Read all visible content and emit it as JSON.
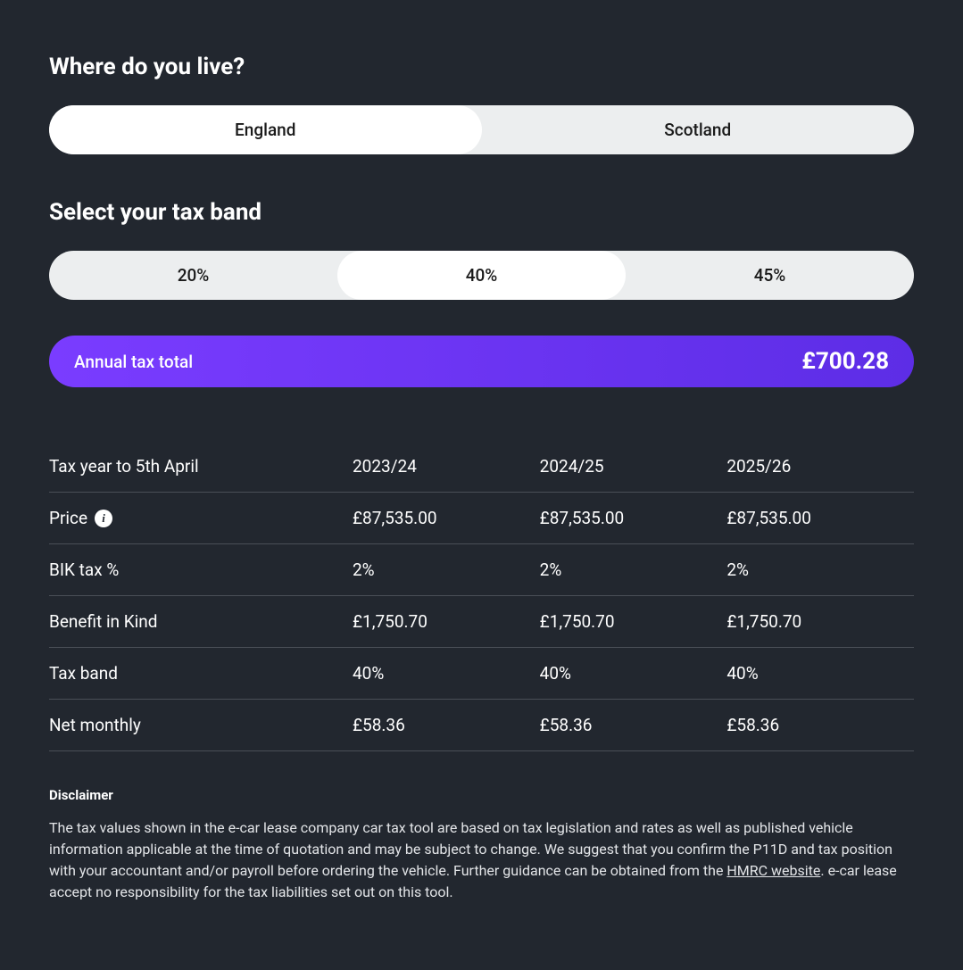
{
  "location": {
    "heading": "Where do you live?",
    "options": [
      "England",
      "Scotland"
    ],
    "selected_index": 0
  },
  "taxband": {
    "heading": "Select your tax band",
    "options": [
      "20%",
      "40%",
      "45%"
    ],
    "selected_index": 1
  },
  "total": {
    "label": "Annual tax total",
    "value": "£700.28",
    "gradient_start": "#7a3cff",
    "gradient_end": "#5d2de6"
  },
  "table": {
    "rows": [
      {
        "label": "Tax year to 5th April",
        "values": [
          "2023/24",
          "2024/25",
          "2025/26"
        ],
        "info": false
      },
      {
        "label": "Price",
        "values": [
          "£87,535.00",
          "£87,535.00",
          "£87,535.00"
        ],
        "info": true
      },
      {
        "label": "BIK tax %",
        "values": [
          "2%",
          "2%",
          "2%"
        ],
        "info": false
      },
      {
        "label": "Benefit in Kind",
        "values": [
          "£1,750.70",
          "£1,750.70",
          "£1,750.70"
        ],
        "info": false
      },
      {
        "label": "Tax band",
        "values": [
          "40%",
          "40%",
          "40%"
        ],
        "info": false
      },
      {
        "label": "Net monthly",
        "values": [
          "£58.36",
          "£58.36",
          "£58.36"
        ],
        "info": false
      }
    ]
  },
  "disclaimer": {
    "heading": "Disclaimer",
    "text_before": "The tax values shown in the e-car lease company car tax tool are based on tax legislation and rates as well as published vehicle information applicable at the time of quotation and may be subject to change. We suggest that you confirm the P11D and tax position with your accountant and/or payroll before ordering the vehicle. Further guidance can be obtained from the ",
    "link_text": "HMRC website",
    "text_after": ". e-car lease accept no responsibility for the tax liabilities set out on this tool."
  },
  "colors": {
    "background": "#22272f",
    "text": "#ffffff",
    "divider": "#4a4f57",
    "segmented_bg": "#eceeef",
    "segmented_active": "#ffffff"
  }
}
